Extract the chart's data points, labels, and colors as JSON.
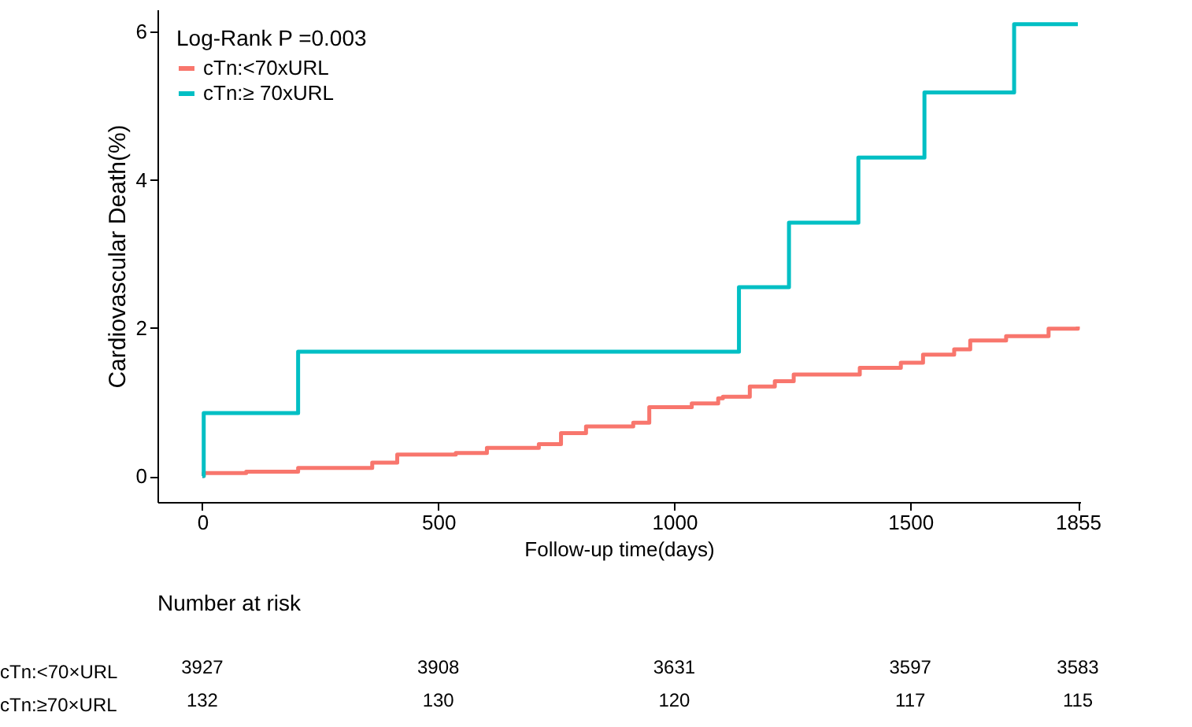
{
  "chart_data": {
    "type": "step",
    "xlabel": "Follow-up time(days)",
    "ylabel": "Cardiovascular Death(%)",
    "legend_title": "Log-Rank P =0.003",
    "legend": "top left",
    "grid": false,
    "xlim": [
      -95,
      1860
    ],
    "xticks": [
      0,
      500,
      1000,
      1500,
      1855
    ],
    "ylim": [
      -0.35,
      6.3
    ],
    "yticks": [
      0,
      2,
      4,
      6
    ],
    "series": [
      {
        "name": "cTn:<70xURL",
        "color": "#f8766d",
        "x": [
          0,
          3,
          93,
          203,
          360,
          413,
          537,
          603,
          713,
          760,
          813,
          913,
          947,
          1037,
          1093,
          1103,
          1160,
          1213,
          1253,
          1393,
          1480,
          1527,
          1593,
          1627,
          1703,
          1793,
          1855
        ],
        "values": [
          0,
          0.04,
          0.06,
          0.11,
          0.18,
          0.29,
          0.31,
          0.38,
          0.43,
          0.58,
          0.67,
          0.72,
          0.93,
          0.98,
          1.05,
          1.07,
          1.21,
          1.28,
          1.37,
          1.46,
          1.53,
          1.64,
          1.71,
          1.83,
          1.89,
          1.99,
          2.02
        ]
      },
      {
        "name": "cTn:≥ 70xURL",
        "color": "#00bfc4",
        "x": [
          0,
          3,
          203,
          1137,
          1243,
          1390,
          1530,
          1720,
          1855
        ],
        "values": [
          0,
          0.85,
          1.68,
          2.55,
          3.42,
          4.3,
          5.18,
          6.1,
          6.1
        ]
      }
    ],
    "annotations": [
      "Number at risk",
      "cTn:<70×URL",
      "3927",
      "3908",
      "3631",
      "3597",
      "3583",
      "cTn:≥70×URL",
      "132",
      "130",
      "120",
      "117",
      "115"
    ]
  }
}
